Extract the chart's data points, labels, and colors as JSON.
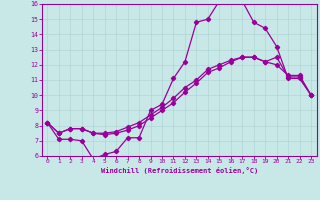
{
  "background_color": "#c8e8e8",
  "grid_color": "#b0d4d4",
  "line_color": "#990099",
  "xlim": [
    -0.5,
    23.5
  ],
  "ylim": [
    6,
    16
  ],
  "xticks": [
    0,
    1,
    2,
    3,
    4,
    5,
    6,
    7,
    8,
    9,
    10,
    11,
    12,
    13,
    14,
    15,
    16,
    17,
    18,
    19,
    20,
    21,
    22,
    23
  ],
  "yticks": [
    6,
    7,
    8,
    9,
    10,
    11,
    12,
    13,
    14,
    15,
    16
  ],
  "xlabel": "Windchill (Refroidissement éolien,°C)",
  "line1_x": [
    0,
    1,
    2,
    3,
    4,
    5,
    6,
    7,
    8,
    9,
    10,
    11,
    12,
    13,
    14,
    15,
    16,
    17,
    18,
    19,
    20,
    21,
    22,
    23
  ],
  "line1_y": [
    8.2,
    7.1,
    7.1,
    7.0,
    5.8,
    6.1,
    6.3,
    7.2,
    7.2,
    9.0,
    9.4,
    11.1,
    12.2,
    14.8,
    15.0,
    16.2,
    16.3,
    16.2,
    14.8,
    14.4,
    13.2,
    11.1,
    11.1,
    10.0
  ],
  "line2_x": [
    0,
    1,
    2,
    3,
    4,
    5,
    6,
    7,
    8,
    9,
    10,
    11,
    12,
    13,
    14,
    15,
    16,
    17,
    18,
    19,
    20,
    21,
    22,
    23
  ],
  "line2_y": [
    8.2,
    7.5,
    7.8,
    7.8,
    7.5,
    7.4,
    7.5,
    7.7,
    8.0,
    8.5,
    9.0,
    9.5,
    10.2,
    10.8,
    11.5,
    11.8,
    12.2,
    12.5,
    12.5,
    12.2,
    12.5,
    11.2,
    11.2,
    10.0
  ],
  "line3_x": [
    0,
    1,
    2,
    3,
    4,
    5,
    6,
    7,
    8,
    9,
    10,
    11,
    12,
    13,
    14,
    15,
    16,
    17,
    18,
    19,
    20,
    21,
    22,
    23
  ],
  "line3_y": [
    8.2,
    7.5,
    7.8,
    7.8,
    7.5,
    7.5,
    7.6,
    7.9,
    8.2,
    8.7,
    9.2,
    9.8,
    10.5,
    11.0,
    11.7,
    12.0,
    12.3,
    12.5,
    12.5,
    12.2,
    12.0,
    11.3,
    11.3,
    10.0
  ]
}
